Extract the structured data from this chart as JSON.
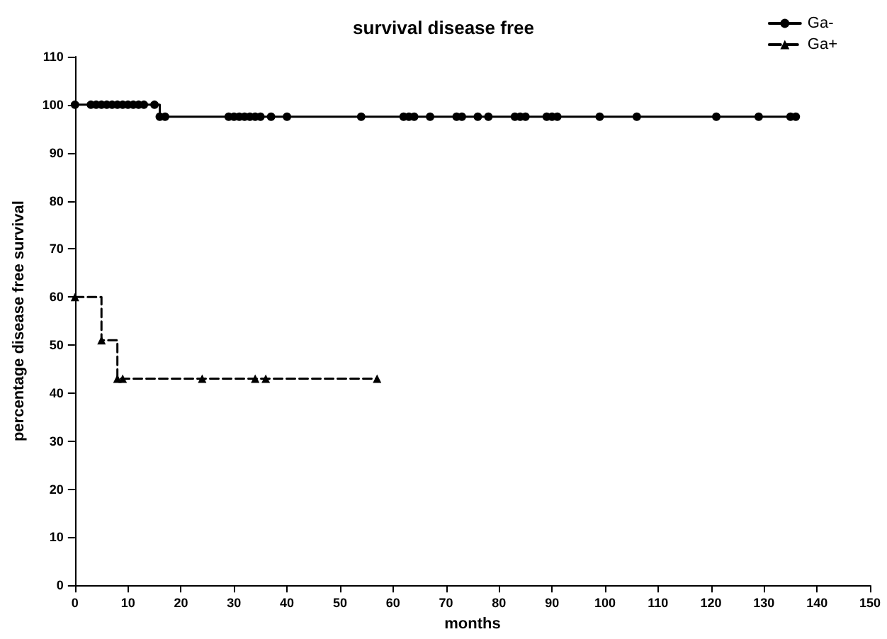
{
  "chart_data": {
    "type": "step",
    "title": "survival disease free",
    "xlabel": "months",
    "ylabel": "percentage disease free survival",
    "series": [
      {
        "name": "Ga-",
        "color": "#000000",
        "marker": "circle",
        "line_style": "solid",
        "x": [
          0,
          3,
          4,
          5,
          6,
          7,
          8,
          9,
          10,
          11,
          12,
          13,
          15,
          16,
          17,
          29,
          30,
          31,
          32,
          33,
          34,
          35,
          37,
          40,
          54,
          62,
          63,
          64,
          67,
          72,
          73,
          76,
          78,
          83,
          84,
          85,
          89,
          90,
          91,
          99,
          106,
          121,
          129,
          135,
          136
        ],
        "values": [
          100,
          100,
          100,
          100,
          100,
          100,
          100,
          100,
          100,
          100,
          100,
          100,
          100,
          97.5,
          97.5,
          97.5,
          97.5,
          97.5,
          97.5,
          97.5,
          97.5,
          97.5,
          97.5,
          97.5,
          97.5,
          97.5,
          97.5,
          97.5,
          97.5,
          97.5,
          97.5,
          97.5,
          97.5,
          97.5,
          97.5,
          97.5,
          97.5,
          97.5,
          97.5,
          97.5,
          97.5,
          97.5,
          97.5,
          97.5,
          97.5
        ]
      },
      {
        "name": "Ga+",
        "color": "#000000",
        "marker": "triangle",
        "line_style": "dashed",
        "x": [
          0,
          5,
          8,
          9,
          24,
          34,
          36,
          57
        ],
        "values": [
          60,
          51,
          43,
          43,
          43,
          43,
          43,
          43
        ]
      }
    ],
    "xlim": [
      0,
      150
    ],
    "xticks": [
      0,
      10,
      20,
      30,
      40,
      50,
      60,
      70,
      80,
      90,
      100,
      110,
      120,
      130,
      140,
      150
    ],
    "ylim": [
      0,
      110
    ],
    "yticks": [
      0,
      10,
      20,
      30,
      40,
      50,
      60,
      70,
      80,
      90,
      100,
      110
    ],
    "grid": false,
    "legend": "top right"
  }
}
